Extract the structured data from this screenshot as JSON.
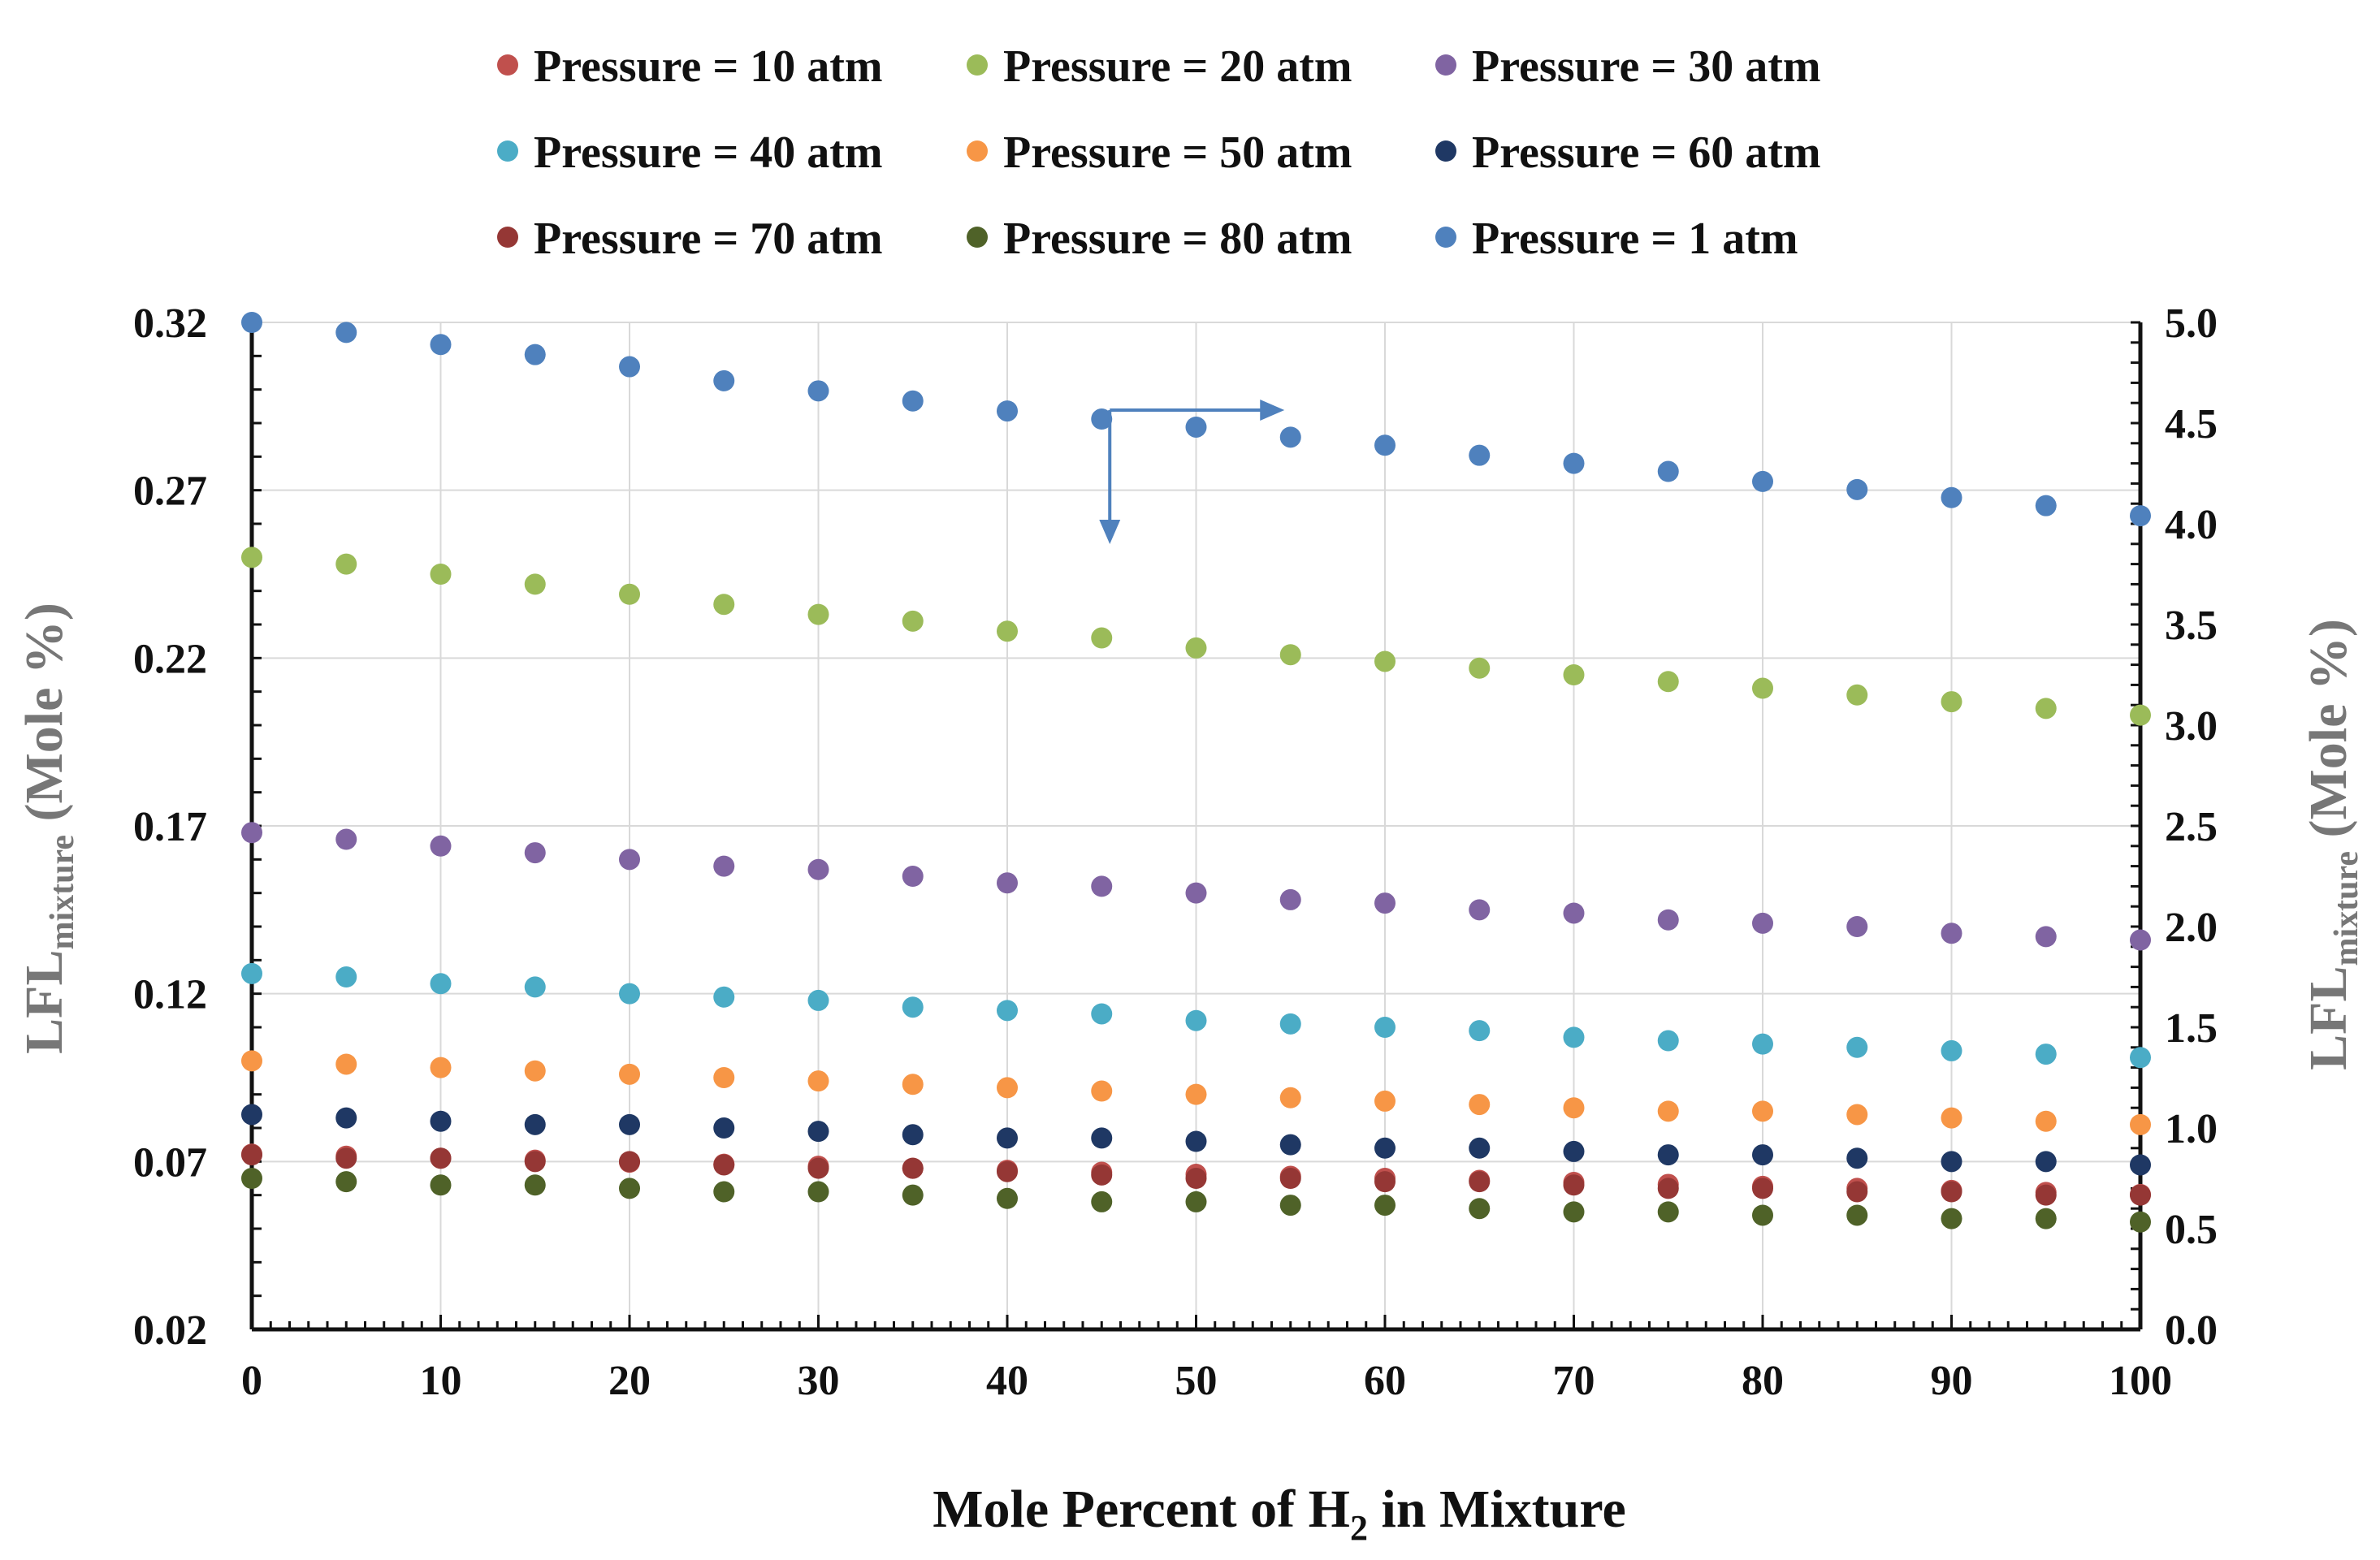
{
  "chart_data": {
    "type": "scatter",
    "title": "",
    "xlabel": {
      "main": "Mole Percent of H",
      "sub": "2",
      "tail": " in Mixture"
    },
    "ylabel_left": {
      "main": "LFL",
      "sub": "mixture",
      "tail": " (Mole %)"
    },
    "ylabel_right": {
      "main": "LFL",
      "sub": "mixture",
      "tail": " (Mole %)"
    },
    "xlim": [
      0,
      100
    ],
    "ylim_left": [
      0.02,
      0.32
    ],
    "ylim_right": [
      0.0,
      5.0
    ],
    "x_ticks": [
      "0",
      "10",
      "20",
      "30",
      "40",
      "50",
      "60",
      "70",
      "80",
      "90",
      "100"
    ],
    "y_ticks_left": [
      "0.02",
      "0.07",
      "0.12",
      "0.17",
      "0.22",
      "0.27",
      "0.32"
    ],
    "y_ticks_right": [
      "0.0",
      "0.5",
      "1.0",
      "1.5",
      "2.0",
      "2.5",
      "3.0",
      "3.5",
      "4.0",
      "4.5",
      "5.0"
    ],
    "grid": true,
    "legend_position": "top",
    "x": [
      0,
      5,
      10,
      15,
      20,
      25,
      30,
      35,
      40,
      45,
      50,
      55,
      60,
      65,
      70,
      75,
      80,
      85,
      90,
      95,
      100
    ],
    "series": [
      {
        "name": "Pressure = 10 atm",
        "color": "#c0504d",
        "axis": "left",
        "values": [
          0.0722,
          0.0716,
          0.071,
          0.0704,
          0.0698,
          0.0692,
          0.0686,
          0.068,
          0.0674,
          0.0668,
          0.0662,
          0.0656,
          0.065,
          0.0644,
          0.0638,
          0.0632,
          0.0626,
          0.062,
          0.0614,
          0.0608,
          0.0602
        ]
      },
      {
        "name": "Pressure = 20 atm",
        "color": "#9bbb59",
        "axis": "left",
        "values": [
          0.25,
          0.248,
          0.245,
          0.242,
          0.239,
          0.236,
          0.233,
          0.231,
          0.228,
          0.226,
          0.223,
          0.221,
          0.219,
          0.217,
          0.215,
          0.213,
          0.211,
          0.209,
          0.207,
          0.205,
          0.203
        ]
      },
      {
        "name": "Pressure = 30 atm",
        "color": "#8064a2",
        "axis": "left",
        "values": [
          0.168,
          0.166,
          0.164,
          0.162,
          0.16,
          0.158,
          0.157,
          0.155,
          0.153,
          0.152,
          0.15,
          0.148,
          0.147,
          0.145,
          0.144,
          0.142,
          0.141,
          0.14,
          0.138,
          0.137,
          0.136
        ]
      },
      {
        "name": "Pressure = 40 atm",
        "color": "#4bacc6",
        "axis": "left",
        "values": [
          0.126,
          0.125,
          0.123,
          0.122,
          0.12,
          0.119,
          0.118,
          0.116,
          0.115,
          0.114,
          0.112,
          0.111,
          0.11,
          0.109,
          0.107,
          0.106,
          0.105,
          0.104,
          0.103,
          0.102,
          0.101
        ]
      },
      {
        "name": "Pressure = 50 atm",
        "color": "#f79646",
        "axis": "left",
        "values": [
          0.1,
          0.099,
          0.098,
          0.097,
          0.096,
          0.095,
          0.094,
          0.093,
          0.092,
          0.091,
          0.09,
          0.089,
          0.088,
          0.087,
          0.086,
          0.085,
          0.085,
          0.084,
          0.083,
          0.082,
          0.081
        ]
      },
      {
        "name": "Pressure = 60 atm",
        "color": "#1f3864",
        "axis": "left",
        "values": [
          0.084,
          0.083,
          0.082,
          0.081,
          0.081,
          0.08,
          0.079,
          0.078,
          0.077,
          0.077,
          0.076,
          0.075,
          0.074,
          0.074,
          0.073,
          0.072,
          0.072,
          0.071,
          0.07,
          0.07,
          0.069
        ]
      },
      {
        "name": "Pressure = 70 atm",
        "color": "#953735",
        "axis": "left",
        "values": [
          0.072,
          0.071,
          0.071,
          0.07,
          0.07,
          0.069,
          0.068,
          0.068,
          0.067,
          0.066,
          0.065,
          0.065,
          0.064,
          0.064,
          0.063,
          0.062,
          0.062,
          0.061,
          0.061,
          0.06,
          0.06
        ]
      },
      {
        "name": "Pressure = 80 atm",
        "color": "#4f6228",
        "axis": "left",
        "values": [
          0.065,
          0.064,
          0.063,
          0.063,
          0.062,
          0.061,
          0.061,
          0.06,
          0.059,
          0.058,
          0.058,
          0.057,
          0.057,
          0.056,
          0.055,
          0.055,
          0.054,
          0.054,
          0.053,
          0.053,
          0.052
        ]
      },
      {
        "name": "Pressure = 1 atm",
        "color": "#4f81bd",
        "axis": "right",
        "values": [
          5.0,
          4.95,
          4.89,
          4.84,
          4.78,
          4.71,
          4.66,
          4.61,
          4.56,
          4.52,
          4.48,
          4.43,
          4.39,
          4.34,
          4.3,
          4.26,
          4.21,
          4.17,
          4.13,
          4.09,
          4.04
        ]
      }
    ],
    "annotation": {
      "type": "arrows",
      "color": "#4f81bd",
      "at_x": 45
    }
  }
}
